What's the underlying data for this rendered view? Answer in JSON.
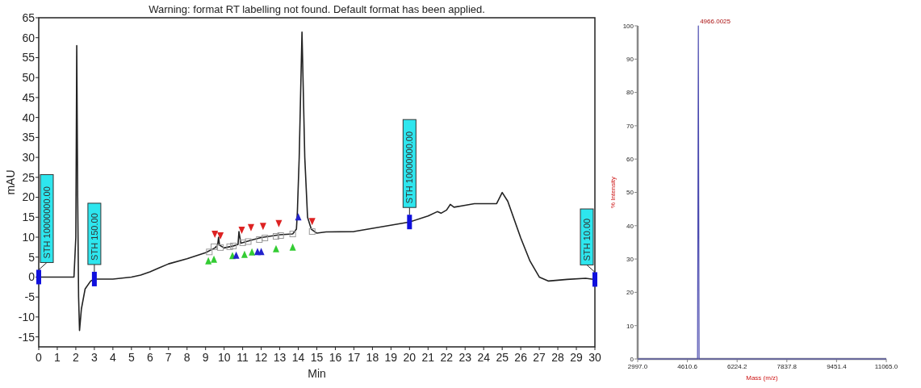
{
  "chart_data": [
    {
      "type": "line",
      "title": "Warning: format RT labelling not found. Default format has been applied.",
      "xlabel": "Min",
      "ylabel": "mAU",
      "series": [
        {
          "color": "#222222",
          "x": [
            0,
            1,
            1.9,
            2.0,
            2.05,
            2.1,
            2.15,
            2.2,
            2.3,
            2.5,
            2.8,
            3,
            4,
            5,
            5.5,
            6,
            6.5,
            7,
            8,
            9,
            9.5,
            9.65,
            9.7,
            9.75,
            10,
            10.5,
            10.75,
            10.8,
            10.9,
            11.5,
            12,
            13,
            13.7,
            13.9,
            13.95,
            14.05,
            14.2,
            14.35,
            14.5,
            14.7,
            15,
            15.5,
            17,
            20,
            21,
            21.5,
            21.7,
            22,
            22.2,
            22.4,
            23,
            23.5,
            24.7,
            25,
            25.3,
            26,
            26.5,
            27,
            27.5,
            28.5,
            29.5,
            30
          ],
          "values": [
            0,
            0,
            0,
            10,
            58,
            20,
            -5,
            -13.4,
            -8,
            -3,
            -1,
            -0.5,
            -0.5,
            0,
            0.5,
            1.3,
            2.3,
            3.3,
            4.6,
            6.1,
            7.3,
            8,
            10,
            8,
            7.3,
            7.8,
            8.2,
            11.4,
            8.5,
            9.3,
            9.9,
            10.6,
            10.8,
            12,
            16.2,
            30,
            61.4,
            30,
            15,
            12,
            11,
            11.3,
            11.4,
            13.8,
            15.3,
            16.4,
            16,
            16.8,
            18.2,
            17.5,
            18,
            18.4,
            18.4,
            21.2,
            19,
            9.8,
            4,
            0,
            -1,
            -0.6,
            -0.3,
            -0.6
          ]
        }
      ],
      "xlim": [
        0,
        30
      ],
      "xticks": [
        0,
        1,
        2,
        3,
        4,
        5,
        6,
        7,
        8,
        9,
        10,
        11,
        12,
        13,
        14,
        15,
        16,
        17,
        18,
        19,
        20,
        21,
        22,
        23,
        24,
        25,
        26,
        27,
        28,
        29,
        30
      ],
      "ylim": [
        -17.5,
        65
      ],
      "yticks": [
        -15,
        -10,
        -5,
        0,
        5,
        10,
        15,
        20,
        25,
        30,
        35,
        40,
        45,
        50,
        55,
        60,
        65
      ],
      "grid": false,
      "annotations": [
        {
          "text": "STH 10000000.00",
          "x": 0,
          "y": 0
        },
        {
          "text": "STH 150.00",
          "x": 3,
          "y": -0.5
        },
        {
          "text": "STH 10000000.00",
          "x": 20,
          "y": 13.8
        },
        {
          "text": "STH 10.00",
          "x": 30,
          "y": -0.6
        }
      ]
    },
    {
      "type": "line",
      "xlabel": "Mass (m/z)",
      "ylabel": "% Intensity",
      "series": [
        {
          "color": "#4b4bb0",
          "x": [
            2997,
            4900,
            4940,
            4966.0025,
            4990,
            5030,
            11065
          ],
          "values": [
            0,
            0,
            0,
            100,
            0,
            0,
            0
          ]
        }
      ],
      "xlim": [
        2997,
        11065
      ],
      "xticks": [
        {
          "value": 2997,
          "label": "2997.0"
        },
        {
          "value": 4610.6,
          "label": "4610.6"
        },
        {
          "value": 6224.2,
          "label": "6224.2"
        },
        {
          "value": 7837.8,
          "label": "7837.8"
        },
        {
          "value": 9451.4,
          "label": "9451.4"
        },
        {
          "value": 11065,
          "label": "11065.0"
        }
      ],
      "ylim": [
        0,
        100
      ],
      "yticks": [
        0,
        10,
        20,
        30,
        40,
        50,
        60,
        70,
        80,
        90,
        100
      ],
      "grid": false,
      "annotations": [
        {
          "text": "4966.0025",
          "x": 4966.0025,
          "y": 100
        }
      ]
    }
  ]
}
